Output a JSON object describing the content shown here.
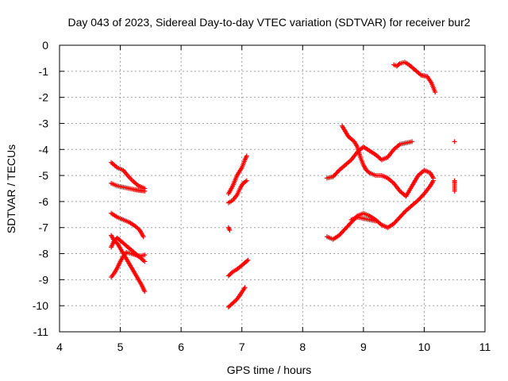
{
  "chart_data": {
    "type": "scatter",
    "title": "Day 043 of 2023, Sidereal Day-to-day VTEC variation (SDTVAR) for receiver bur2",
    "xlabel": "GPS time / hours",
    "ylabel": "SDTVAR / TECUs",
    "xlim": [
      4,
      11
    ],
    "ylim": [
      -11,
      0
    ],
    "xticks": [
      4,
      5,
      6,
      7,
      8,
      9,
      10,
      11
    ],
    "yticks": [
      0,
      -1,
      -2,
      -3,
      -4,
      -5,
      -6,
      -7,
      -8,
      -9,
      -10,
      -11
    ],
    "grid": true,
    "marker": "+",
    "color": "#ff0000",
    "segments": [
      [
        [
          4.85,
          -4.5
        ],
        [
          4.95,
          -4.7
        ],
        [
          5.05,
          -4.8
        ],
        [
          5.12,
          -5.0
        ],
        [
          5.2,
          -5.2
        ],
        [
          5.3,
          -5.4
        ],
        [
          5.4,
          -5.5
        ]
      ],
      [
        [
          4.85,
          -5.3
        ],
        [
          4.95,
          -5.4
        ],
        [
          5.05,
          -5.45
        ],
        [
          5.15,
          -5.5
        ],
        [
          5.25,
          -5.55
        ],
        [
          5.4,
          -5.6
        ]
      ],
      [
        [
          4.85,
          -6.45
        ],
        [
          4.95,
          -6.6
        ],
        [
          5.05,
          -6.7
        ],
        [
          5.15,
          -6.8
        ],
        [
          5.25,
          -6.95
        ],
        [
          5.32,
          -7.1
        ],
        [
          5.38,
          -7.35
        ]
      ],
      [
        [
          4.85,
          -7.3
        ],
        [
          4.9,
          -7.5
        ],
        [
          4.95,
          -7.6
        ],
        [
          5.0,
          -7.8
        ],
        [
          5.05,
          -8.0
        ],
        [
          5.1,
          -8.2
        ],
        [
          5.15,
          -8.4
        ],
        [
          5.2,
          -8.6
        ],
        [
          5.25,
          -8.8
        ],
        [
          5.3,
          -9.0
        ],
        [
          5.35,
          -9.2
        ],
        [
          5.4,
          -9.45
        ]
      ],
      [
        [
          4.85,
          -8.9
        ],
        [
          4.9,
          -8.75
        ],
        [
          4.95,
          -8.55
        ],
        [
          5.0,
          -8.3
        ],
        [
          5.05,
          -8.1
        ],
        [
          5.1,
          -7.95
        ],
        [
          5.18,
          -8.0
        ],
        [
          5.25,
          -8.05
        ],
        [
          5.32,
          -8.1
        ],
        [
          5.4,
          -8.05
        ]
      ],
      [
        [
          4.85,
          -7.75
        ],
        [
          4.9,
          -7.5
        ],
        [
          4.95,
          -7.4
        ],
        [
          5.0,
          -7.5
        ],
        [
          5.05,
          -7.6
        ],
        [
          5.1,
          -7.7
        ],
        [
          5.2,
          -7.9
        ],
        [
          5.3,
          -8.1
        ],
        [
          5.4,
          -8.3
        ]
      ],
      [
        [
          6.78,
          -5.7
        ],
        [
          6.85,
          -5.4
        ],
        [
          6.92,
          -5.0
        ],
        [
          7.0,
          -4.7
        ],
        [
          7.05,
          -4.4
        ],
        [
          7.08,
          -4.25
        ]
      ],
      [
        [
          6.78,
          -6.05
        ],
        [
          6.85,
          -5.95
        ],
        [
          6.92,
          -5.75
        ],
        [
          6.98,
          -5.45
        ],
        [
          7.02,
          -5.3
        ],
        [
          7.08,
          -5.2
        ]
      ],
      [
        [
          6.78,
          -7.0
        ],
        [
          6.8,
          -7.1
        ]
      ],
      [
        [
          6.78,
          -8.85
        ],
        [
          6.85,
          -8.7
        ],
        [
          6.92,
          -8.6
        ],
        [
          7.0,
          -8.45
        ],
        [
          7.05,
          -8.35
        ],
        [
          7.1,
          -8.25
        ]
      ],
      [
        [
          6.78,
          -10.05
        ],
        [
          6.85,
          -9.9
        ],
        [
          6.92,
          -9.75
        ],
        [
          6.98,
          -9.55
        ],
        [
          7.05,
          -9.3
        ]
      ],
      [
        [
          8.4,
          -5.1
        ],
        [
          8.5,
          -5.05
        ],
        [
          8.6,
          -4.8
        ],
        [
          8.7,
          -4.6
        ],
        [
          8.8,
          -4.4
        ],
        [
          8.9,
          -4.1
        ],
        [
          9.0,
          -3.9
        ],
        [
          9.1,
          -4.05
        ],
        [
          9.2,
          -4.2
        ],
        [
          9.3,
          -4.4
        ],
        [
          9.4,
          -4.3
        ],
        [
          9.5,
          -4.0
        ],
        [
          9.6,
          -3.8
        ],
        [
          9.7,
          -3.75
        ],
        [
          9.8,
          -3.7
        ]
      ],
      [
        [
          8.65,
          -3.1
        ],
        [
          8.7,
          -3.3
        ],
        [
          8.75,
          -3.5
        ],
        [
          8.8,
          -3.6
        ],
        [
          8.85,
          -3.7
        ],
        [
          8.9,
          -3.9
        ],
        [
          8.95,
          -4.3
        ],
        [
          9.0,
          -4.6
        ],
        [
          9.05,
          -4.8
        ],
        [
          9.1,
          -4.9
        ],
        [
          9.2,
          -5.0
        ],
        [
          9.3,
          -5.0
        ],
        [
          9.4,
          -5.1
        ],
        [
          9.5,
          -5.3
        ],
        [
          9.6,
          -5.6
        ],
        [
          9.7,
          -5.8
        ],
        [
          9.8,
          -5.4
        ],
        [
          9.9,
          -5.0
        ],
        [
          10.0,
          -4.8
        ],
        [
          10.1,
          -4.9
        ],
        [
          10.15,
          -5.1
        ]
      ],
      [
        [
          8.4,
          -7.35
        ],
        [
          8.5,
          -7.45
        ],
        [
          8.6,
          -7.3
        ],
        [
          8.7,
          -7.05
        ],
        [
          8.8,
          -6.8
        ],
        [
          8.9,
          -6.55
        ],
        [
          9.0,
          -6.45
        ],
        [
          9.1,
          -6.55
        ],
        [
          9.2,
          -6.7
        ],
        [
          9.3,
          -6.9
        ],
        [
          9.4,
          -7.0
        ],
        [
          9.5,
          -6.85
        ],
        [
          9.6,
          -6.6
        ],
        [
          9.7,
          -6.35
        ],
        [
          9.8,
          -6.15
        ],
        [
          9.9,
          -5.95
        ],
        [
          10.0,
          -5.7
        ],
        [
          10.1,
          -5.4
        ],
        [
          10.15,
          -5.2
        ]
      ],
      [
        [
          8.8,
          -6.7
        ],
        [
          8.9,
          -6.6
        ],
        [
          9.0,
          -6.65
        ],
        [
          9.1,
          -6.7
        ],
        [
          9.2,
          -6.75
        ]
      ],
      [
        [
          9.5,
          -0.75
        ],
        [
          9.55,
          -0.8
        ],
        [
          9.6,
          -0.7
        ],
        [
          9.68,
          -0.65
        ],
        [
          9.75,
          -0.75
        ],
        [
          9.85,
          -0.95
        ],
        [
          9.95,
          -1.15
        ],
        [
          10.05,
          -1.2
        ],
        [
          10.12,
          -1.45
        ],
        [
          10.18,
          -1.8
        ]
      ],
      [
        [
          10.5,
          -3.7
        ],
        [
          10.5,
          -5.2
        ],
        [
          10.5,
          -5.3
        ],
        [
          10.5,
          -5.6
        ]
      ]
    ]
  }
}
